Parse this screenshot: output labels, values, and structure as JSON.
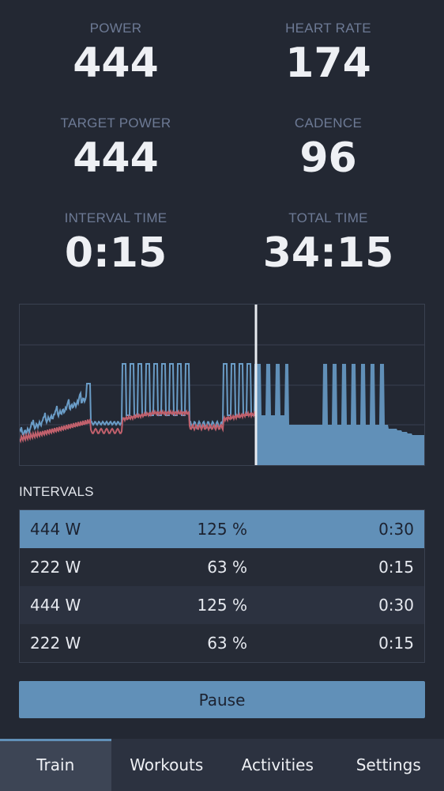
{
  "stats": {
    "power": {
      "label": "POWER",
      "value": "444"
    },
    "heart_rate": {
      "label": "HEART RATE",
      "value": "174"
    },
    "target_power": {
      "label": "TARGET POWER",
      "value": "444"
    },
    "cadence": {
      "label": "CADENCE",
      "value": "96"
    },
    "interval_time": {
      "label": "INTERVAL TIME",
      "value": "0:15"
    },
    "total_time": {
      "label": "TOTAL TIME",
      "value": "34:15"
    }
  },
  "chart_colors": {
    "target_fill": "#6190b8",
    "power_line": "#6a9cc6",
    "heart_rate_line": "#c0606c",
    "cursor": "#e8ebf0",
    "grid": "#3a4150"
  },
  "intervals": {
    "title": "INTERVALS",
    "rows": [
      {
        "watts": "444 W",
        "percent": "125 %",
        "duration": "0:30",
        "active": true
      },
      {
        "watts": "222 W",
        "percent": "63 %",
        "duration": "0:15",
        "active": false
      },
      {
        "watts": "444 W",
        "percent": "125 %",
        "duration": "0:30",
        "active": false
      },
      {
        "watts": "222 W",
        "percent": "63 %",
        "duration": "0:15",
        "active": false
      }
    ]
  },
  "pause_label": "Pause",
  "tabs": [
    {
      "label": "Train",
      "active": true
    },
    {
      "label": "Workouts",
      "active": false
    },
    {
      "label": "Activities",
      "active": false
    },
    {
      "label": "Settings",
      "active": false
    }
  ]
}
